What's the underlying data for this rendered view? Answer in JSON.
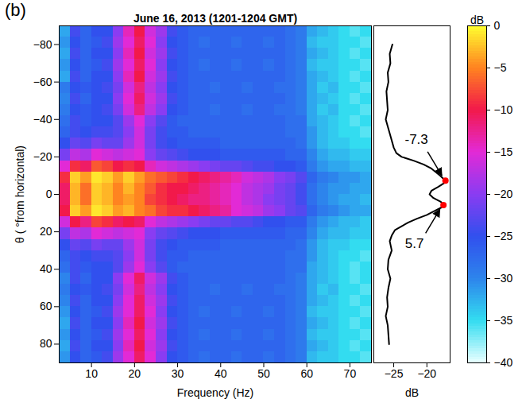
{
  "chart_data": [
    {
      "type": "heatmap",
      "title": "June 16, 2013 (1201-1204 GMT)",
      "panel_label": "(b)",
      "x_label": "Frequency (Hz)",
      "y_label": "θ ( °from horizontal)",
      "xlim": [
        2.5,
        75
      ],
      "xticks": [
        10,
        20,
        30,
        40,
        50,
        60,
        70
      ],
      "ylim": [
        -90,
        90
      ],
      "yticks": [
        -80,
        -60,
        -40,
        -20,
        0,
        20,
        40,
        60,
        80
      ],
      "x_bins": [
        2.5,
        5,
        7.5,
        10,
        12.5,
        15,
        17.5,
        20,
        22.5,
        25,
        27.5,
        30,
        32.5,
        35,
        37.5,
        40,
        42.5,
        45,
        47.5,
        50,
        52.5,
        55,
        57.5,
        60,
        62.5,
        65,
        67.5,
        70,
        72.5,
        75
      ],
      "y_bins": [
        -90,
        -84,
        -78,
        -72,
        -66,
        -60,
        -54,
        -48,
        -42,
        -36,
        -30,
        -24,
        -18,
        -12,
        -6,
        0,
        6,
        12,
        18,
        24,
        30,
        36,
        42,
        48,
        54,
        60,
        66,
        72,
        78,
        84,
        90
      ],
      "values": [
        [
          -32,
          -24,
          -27,
          -25,
          -25,
          -20,
          -14,
          -10,
          -16,
          -19,
          -24,
          -26,
          -27,
          -27,
          -27,
          -27,
          -27,
          -27,
          -27,
          -27,
          -27,
          -28,
          -29,
          -32,
          -33,
          -34,
          -35,
          -36,
          -35
        ],
        [
          -31,
          -25,
          -27,
          -26,
          -24,
          -19,
          -15,
          -11,
          -15,
          -20,
          -25,
          -26,
          -27,
          -28,
          -27,
          -27,
          -28,
          -27,
          -27,
          -28,
          -27,
          -28,
          -29,
          -33,
          -34,
          -34,
          -35,
          -35,
          -36
        ],
        [
          -32,
          -24,
          -27,
          -25,
          -25,
          -20,
          -14,
          -10,
          -16,
          -19,
          -24,
          -26,
          -27,
          -27,
          -27,
          -27,
          -27,
          -27,
          -27,
          -27,
          -27,
          -28,
          -29,
          -32,
          -33,
          -34,
          -35,
          -36,
          -35
        ],
        [
          -31,
          -25,
          -27,
          -26,
          -24,
          -19,
          -15,
          -11,
          -15,
          -20,
          -25,
          -26,
          -27,
          -28,
          -27,
          -27,
          -28,
          -27,
          -27,
          -28,
          -27,
          -28,
          -29,
          -33,
          -34,
          -34,
          -35,
          -35,
          -36
        ],
        [
          -32,
          -24,
          -27,
          -25,
          -25,
          -20,
          -14,
          -10,
          -16,
          -19,
          -24,
          -26,
          -27,
          -27,
          -27,
          -27,
          -27,
          -27,
          -27,
          -27,
          -27,
          -28,
          -29,
          -32,
          -33,
          -34,
          -35,
          -36,
          -35
        ],
        [
          -29,
          -25,
          -26,
          -25,
          -24,
          -21,
          -16,
          -12,
          -17,
          -20,
          -25,
          -26,
          -27,
          -27,
          -28,
          -27,
          -27,
          -28,
          -27,
          -27,
          -28,
          -28,
          -29,
          -32,
          -34,
          -33,
          -35,
          -35,
          -36
        ],
        [
          -30,
          -24,
          -27,
          -25,
          -25,
          -20,
          -15,
          -11,
          -16,
          -19,
          -24,
          -26,
          -27,
          -27,
          -27,
          -27,
          -27,
          -27,
          -27,
          -27,
          -27,
          -28,
          -29,
          -32,
          -33,
          -34,
          -35,
          -36,
          -35
        ],
        [
          -29,
          -25,
          -26,
          -25,
          -24,
          -21,
          -16,
          -12,
          -17,
          -20,
          -25,
          -26,
          -27,
          -27,
          -28,
          -27,
          -27,
          -28,
          -27,
          -27,
          -28,
          -28,
          -29,
          -32,
          -34,
          -33,
          -35,
          -35,
          -36
        ],
        [
          -28,
          -24,
          -26,
          -25,
          -25,
          -23,
          -19,
          -15,
          -20,
          -23,
          -26,
          -27,
          -27,
          -27,
          -27,
          -27,
          -27,
          -27,
          -27,
          -27,
          -27,
          -28,
          -28,
          -32,
          -33,
          -34,
          -35,
          -36,
          -35
        ],
        [
          -27,
          -24,
          -25,
          -24,
          -24,
          -23,
          -20,
          -16,
          -21,
          -24,
          -26,
          -26,
          -27,
          -27,
          -27,
          -27,
          -27,
          -27,
          -27,
          -27,
          -27,
          -28,
          -28,
          -31,
          -33,
          -34,
          -35,
          -35,
          -36
        ],
        [
          -25,
          -22,
          -23,
          -21,
          -22,
          -22,
          -19,
          -16,
          -21,
          -24,
          -25,
          -26,
          -26,
          -26,
          -26,
          -27,
          -27,
          -27,
          -27,
          -27,
          -27,
          -27,
          -28,
          -31,
          -33,
          -34,
          -34,
          -35,
          -35
        ],
        [
          -21,
          -17,
          -18,
          -15,
          -16,
          -17,
          -16,
          -15,
          -20,
          -22,
          -23,
          -24,
          -25,
          -25,
          -25,
          -26,
          -26,
          -26,
          -26,
          -26,
          -26,
          -27,
          -27,
          -30,
          -32,
          -33,
          -33,
          -34,
          -34
        ],
        [
          -15,
          -9,
          -11,
          -7,
          -8,
          -10,
          -9,
          -10,
          -14,
          -16,
          -17,
          -18,
          -19,
          -20,
          -21,
          -22,
          -22,
          -23,
          -24,
          -24,
          -25,
          -25,
          -26,
          -29,
          -31,
          -32,
          -32,
          -33,
          -33
        ],
        [
          -9,
          -2,
          -4,
          -1,
          -2,
          -4,
          -2,
          -4,
          -6,
          -7,
          -8,
          -9,
          -10,
          -11,
          -12,
          -13,
          -14,
          -16,
          -17,
          -18,
          -20,
          -21,
          -23,
          -27,
          -29,
          -30,
          -31,
          -31,
          -32
        ],
        [
          -11,
          -3,
          -6,
          -2,
          -3,
          -5,
          -3,
          -5,
          -7,
          -9,
          -10,
          -10,
          -11,
          -12,
          -13,
          -14,
          -15,
          -17,
          -18,
          -19,
          -21,
          -22,
          -24,
          -28,
          -30,
          -31,
          -31,
          -32,
          -32
        ],
        [
          -11,
          -3,
          -6,
          -2,
          -3,
          -5,
          -4,
          -5,
          -8,
          -9,
          -10,
          -11,
          -12,
          -12,
          -13,
          -14,
          -15,
          -17,
          -18,
          -20,
          -21,
          -22,
          -24,
          -28,
          -30,
          -31,
          -32,
          -32,
          -33
        ],
        [
          -10,
          -2,
          -4,
          -1,
          -2,
          -4,
          -3,
          -5,
          -6,
          -8,
          -9,
          -9,
          -10,
          -11,
          -12,
          -13,
          -15,
          -16,
          -17,
          -19,
          -20,
          -22,
          -23,
          -27,
          -29,
          -30,
          -31,
          -32,
          -32
        ],
        [
          -16,
          -10,
          -12,
          -8,
          -9,
          -11,
          -10,
          -11,
          -15,
          -17,
          -18,
          -19,
          -20,
          -21,
          -22,
          -22,
          -23,
          -23,
          -24,
          -25,
          -25,
          -26,
          -26,
          -29,
          -31,
          -32,
          -33,
          -33,
          -34
        ],
        [
          -21,
          -17,
          -18,
          -15,
          -16,
          -17,
          -16,
          -15,
          -20,
          -22,
          -23,
          -24,
          -25,
          -25,
          -25,
          -26,
          -26,
          -26,
          -26,
          -26,
          -26,
          -27,
          -27,
          -30,
          -32,
          -33,
          -33,
          -34,
          -34
        ],
        [
          -25,
          -22,
          -23,
          -21,
          -22,
          -22,
          -19,
          -16,
          -21,
          -24,
          -25,
          -26,
          -26,
          -26,
          -26,
          -27,
          -27,
          -27,
          -27,
          -27,
          -27,
          -27,
          -28,
          -31,
          -33,
          -34,
          -34,
          -35,
          -35
        ],
        [
          -27,
          -24,
          -25,
          -24,
          -24,
          -23,
          -20,
          -16,
          -21,
          -24,
          -26,
          -26,
          -27,
          -27,
          -27,
          -27,
          -27,
          -27,
          -27,
          -27,
          -27,
          -28,
          -28,
          -31,
          -33,
          -34,
          -35,
          -35,
          -36
        ],
        [
          -28,
          -24,
          -26,
          -25,
          -25,
          -23,
          -19,
          -15,
          -20,
          -23,
          -26,
          -27,
          -27,
          -27,
          -27,
          -27,
          -27,
          -27,
          -27,
          -27,
          -27,
          -28,
          -28,
          -32,
          -33,
          -34,
          -35,
          -36,
          -35
        ],
        [
          -30,
          -24,
          -27,
          -25,
          -25,
          -20,
          -15,
          -11,
          -16,
          -19,
          -24,
          -26,
          -27,
          -27,
          -27,
          -27,
          -27,
          -27,
          -27,
          -27,
          -27,
          -28,
          -29,
          -32,
          -33,
          -34,
          -35,
          -36,
          -35
        ],
        [
          -29,
          -25,
          -26,
          -25,
          -24,
          -21,
          -16,
          -12,
          -17,
          -20,
          -25,
          -26,
          -27,
          -27,
          -28,
          -27,
          -27,
          -28,
          -27,
          -27,
          -28,
          -28,
          -29,
          -32,
          -34,
          -33,
          -35,
          -35,
          -36
        ],
        [
          -30,
          -24,
          -27,
          -25,
          -25,
          -20,
          -15,
          -11,
          -16,
          -19,
          -24,
          -26,
          -27,
          -27,
          -27,
          -27,
          -27,
          -27,
          -27,
          -27,
          -27,
          -28,
          -29,
          -32,
          -33,
          -34,
          -35,
          -36,
          -35
        ],
        [
          -31,
          -25,
          -27,
          -26,
          -24,
          -19,
          -15,
          -11,
          -15,
          -20,
          -25,
          -26,
          -27,
          -28,
          -27,
          -27,
          -28,
          -27,
          -27,
          -28,
          -27,
          -28,
          -29,
          -33,
          -34,
          -34,
          -35,
          -35,
          -36
        ],
        [
          -32,
          -24,
          -27,
          -25,
          -25,
          -20,
          -14,
          -10,
          -16,
          -19,
          -24,
          -26,
          -27,
          -27,
          -27,
          -27,
          -27,
          -27,
          -27,
          -27,
          -27,
          -28,
          -29,
          -32,
          -33,
          -34,
          -35,
          -36,
          -35
        ],
        [
          -31,
          -25,
          -27,
          -26,
          -24,
          -19,
          -15,
          -11,
          -15,
          -20,
          -25,
          -26,
          -27,
          -28,
          -27,
          -27,
          -28,
          -27,
          -27,
          -28,
          -27,
          -28,
          -29,
          -33,
          -34,
          -34,
          -35,
          -35,
          -36
        ],
        [
          -32,
          -24,
          -27,
          -25,
          -25,
          -20,
          -14,
          -10,
          -16,
          -19,
          -24,
          -26,
          -27,
          -27,
          -27,
          -27,
          -27,
          -27,
          -27,
          -27,
          -27,
          -28,
          -29,
          -32,
          -33,
          -34,
          -35,
          -36,
          -35
        ],
        [
          -31,
          -25,
          -27,
          -26,
          -24,
          -19,
          -15,
          -11,
          -15,
          -20,
          -25,
          -26,
          -27,
          -28,
          -27,
          -27,
          -28,
          -27,
          -27,
          -28,
          -27,
          -28,
          -29,
          -33,
          -34,
          -34,
          -35,
          -35,
          -36
        ]
      ],
      "colorbar": {
        "label": "dB",
        "lim": [
          -40,
          0
        ],
        "ticks": [
          -40,
          -35,
          -30,
          -25,
          -20,
          -15,
          -10,
          -5,
          0
        ]
      }
    },
    {
      "type": "line",
      "x_label": "dB",
      "xlim": [
        -28,
        -16.5
      ],
      "xticks": [
        -25,
        -20
      ],
      "ylim": [
        -90,
        90
      ],
      "yticks": [
        -80,
        -60,
        -40,
        -20,
        0,
        20,
        40,
        60,
        80
      ],
      "tick_labels": "x",
      "color": "#000000",
      "theta": [
        -80,
        -75,
        -70,
        -65,
        -60,
        -55,
        -50,
        -45,
        -40,
        -35,
        -30,
        -25,
        -22,
        -20,
        -18,
        -16,
        -14,
        -12,
        -10,
        -8,
        -7.3,
        -6,
        -4,
        -2,
        0,
        2,
        4,
        5.7,
        7,
        9,
        11,
        13,
        15,
        17,
        19,
        22,
        25,
        30,
        35,
        40,
        45,
        50,
        55,
        60,
        65,
        70,
        75,
        80
      ],
      "values": [
        -25.2,
        -25.6,
        -25.5,
        -25.9,
        -25.8,
        -26.1,
        -26.0,
        -25.9,
        -26.2,
        -25.8,
        -25.4,
        -25.0,
        -24.6,
        -23.8,
        -22.0,
        -20.5,
        -19.4,
        -18.7,
        -18.0,
        -17.4,
        -17.2,
        -17.4,
        -18.3,
        -19.3,
        -19.6,
        -19.0,
        -17.9,
        -17.5,
        -17.8,
        -18.9,
        -20.0,
        -21.5,
        -22.8,
        -23.8,
        -24.8,
        -25.3,
        -25.6,
        -25.3,
        -25.8,
        -25.9,
        -25.5,
        -25.8,
        -26.0,
        -25.9,
        -26.2,
        -25.9,
        -25.8,
        -25.7
      ],
      "annotations": [
        {
          "text": "-7.3",
          "theta": -7.3,
          "value": -17.2,
          "color": "#ff0000"
        },
        {
          "text": "5.7",
          "theta": 5.7,
          "value": -17.5,
          "color": "#ff0000"
        }
      ]
    }
  ]
}
